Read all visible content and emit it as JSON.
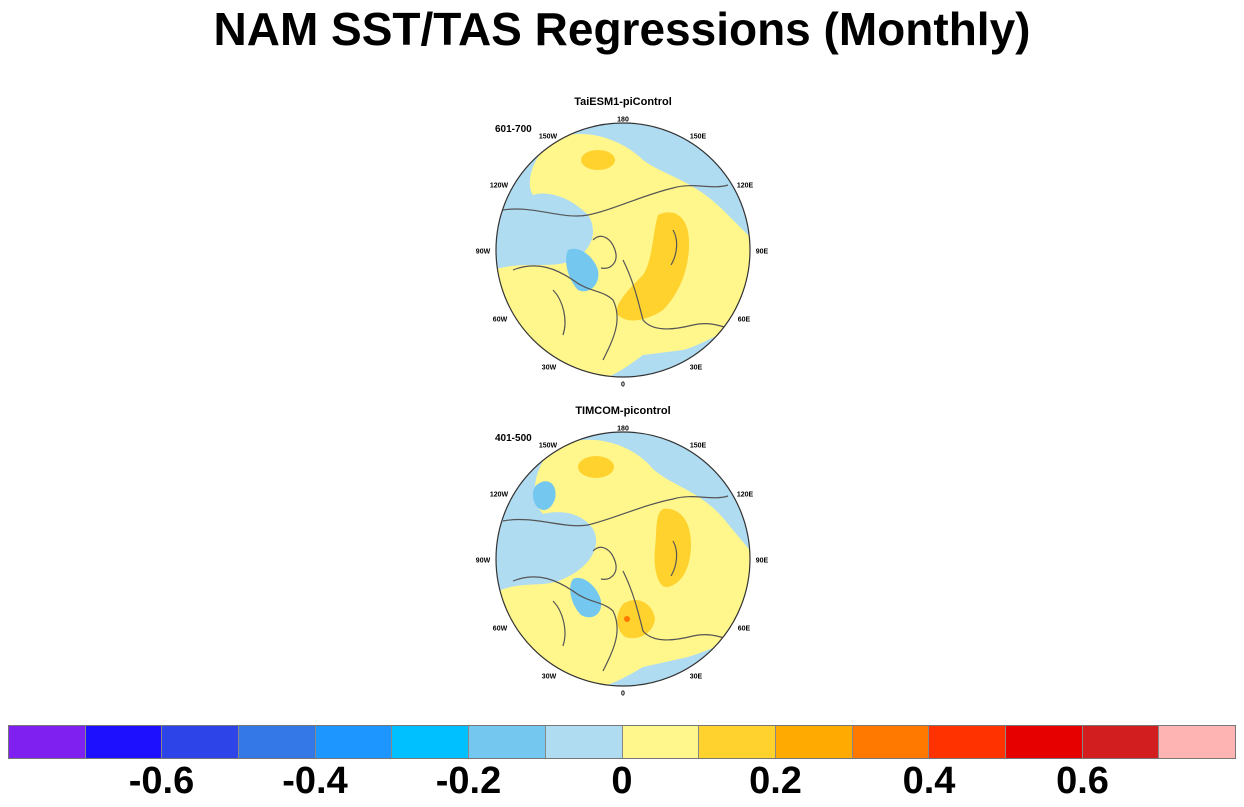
{
  "title": "NAM SST/TAS Regressions (Monthly)",
  "panels": [
    {
      "title": "TaiESM1-piControl",
      "period": "601-700",
      "lon_labels": [
        "180",
        "150E",
        "120E",
        "90E",
        "60E",
        "30E",
        "0",
        "30W",
        "60W",
        "90W",
        "120W",
        "150W"
      ]
    },
    {
      "title": "TIMCOM-picontrol",
      "period": "401-500",
      "lon_labels": [
        "180",
        "150E",
        "120E",
        "90E",
        "60E",
        "30E",
        "0",
        "30W",
        "60W",
        "90W",
        "120W",
        "150W"
      ]
    }
  ],
  "colorbar": {
    "colors": [
      "#8020f0",
      "#1c10ff",
      "#2c44e8",
      "#3478e8",
      "#1e96ff",
      "#00c0ff",
      "#74c8f0",
      "#b0dcf2",
      "#fff68c",
      "#ffd22e",
      "#ffaa00",
      "#ff7800",
      "#ff3200",
      "#e60000",
      "#d21e1e",
      "#ffb4b4"
    ],
    "tick_labels": [
      "-0.6",
      "-0.4",
      "-0.2",
      "0",
      "0.2",
      "0.4",
      "0.6"
    ],
    "tick_values": [
      -0.6,
      -0.4,
      -0.2,
      0,
      0.2,
      0.4,
      0.6
    ]
  }
}
